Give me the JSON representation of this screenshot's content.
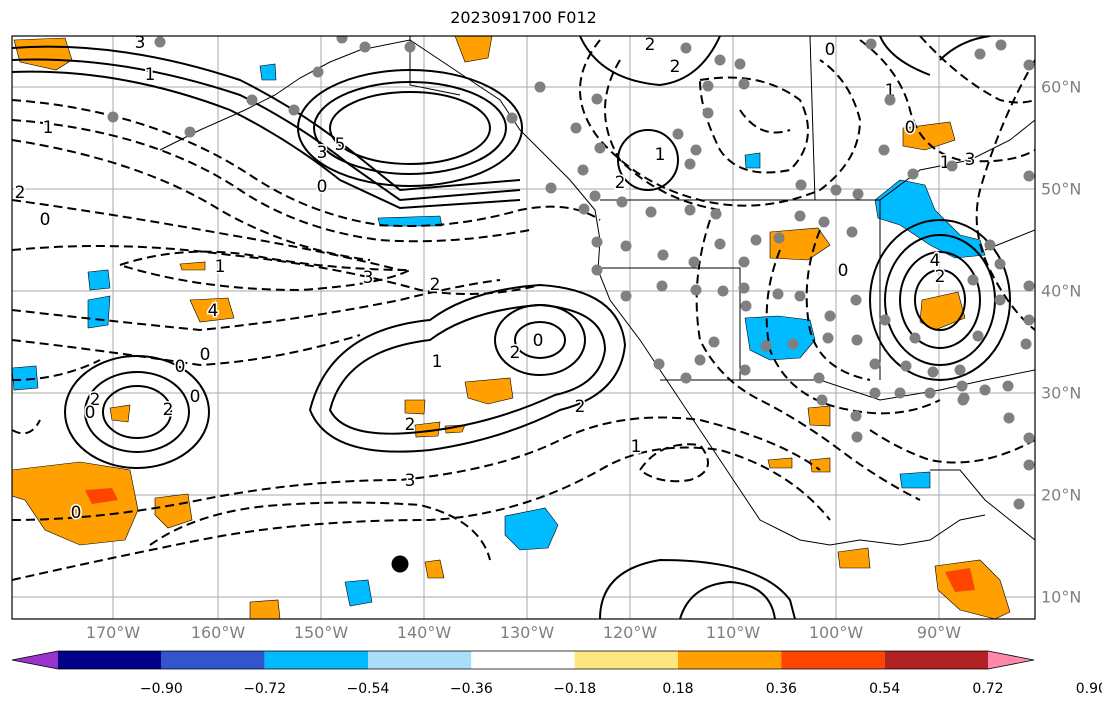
{
  "title": "2023091700 F012",
  "map": {
    "region": "North Pacific and North America",
    "lon_ticks": [
      "170°W",
      "160°W",
      "150°W",
      "140°W",
      "130°W",
      "120°W",
      "110°W",
      "100°W",
      "90°W"
    ],
    "lat_ticks": [
      "60°N",
      "50°N",
      "40°N",
      "30°N",
      "20°N",
      "10°N"
    ],
    "contour_labels": [
      "3",
      "1",
      "5",
      "3",
      "0",
      "2",
      "0",
      "1",
      "0",
      "2",
      "0",
      "0",
      "0",
      "1",
      "4",
      "3",
      "2",
      "2",
      "2",
      "0",
      "1",
      "2",
      "3",
      "1",
      "2",
      "0",
      "1",
      "2",
      "2",
      "2",
      "0",
      "1",
      "0",
      "1",
      "3",
      "4",
      "2",
      "0"
    ],
    "station_marker_color": "#808080",
    "storm_marker_color": "#000000",
    "grid_color": "#aaaaaa",
    "land_outline_color": "#000000"
  },
  "colorbar": {
    "labels": [
      "−0.90",
      "−0.72",
      "−0.54",
      "−0.36",
      "−0.18",
      "0.18",
      "0.36",
      "0.54",
      "0.72",
      "0.90"
    ],
    "colors": [
      "#9933cc",
      "#000088",
      "#3355cc",
      "#00bbff",
      "#aaddf8",
      "#ffffff",
      "#ffe680",
      "#ff9f00",
      "#ff4400",
      "#b22222",
      "#ff88aa"
    ]
  }
}
